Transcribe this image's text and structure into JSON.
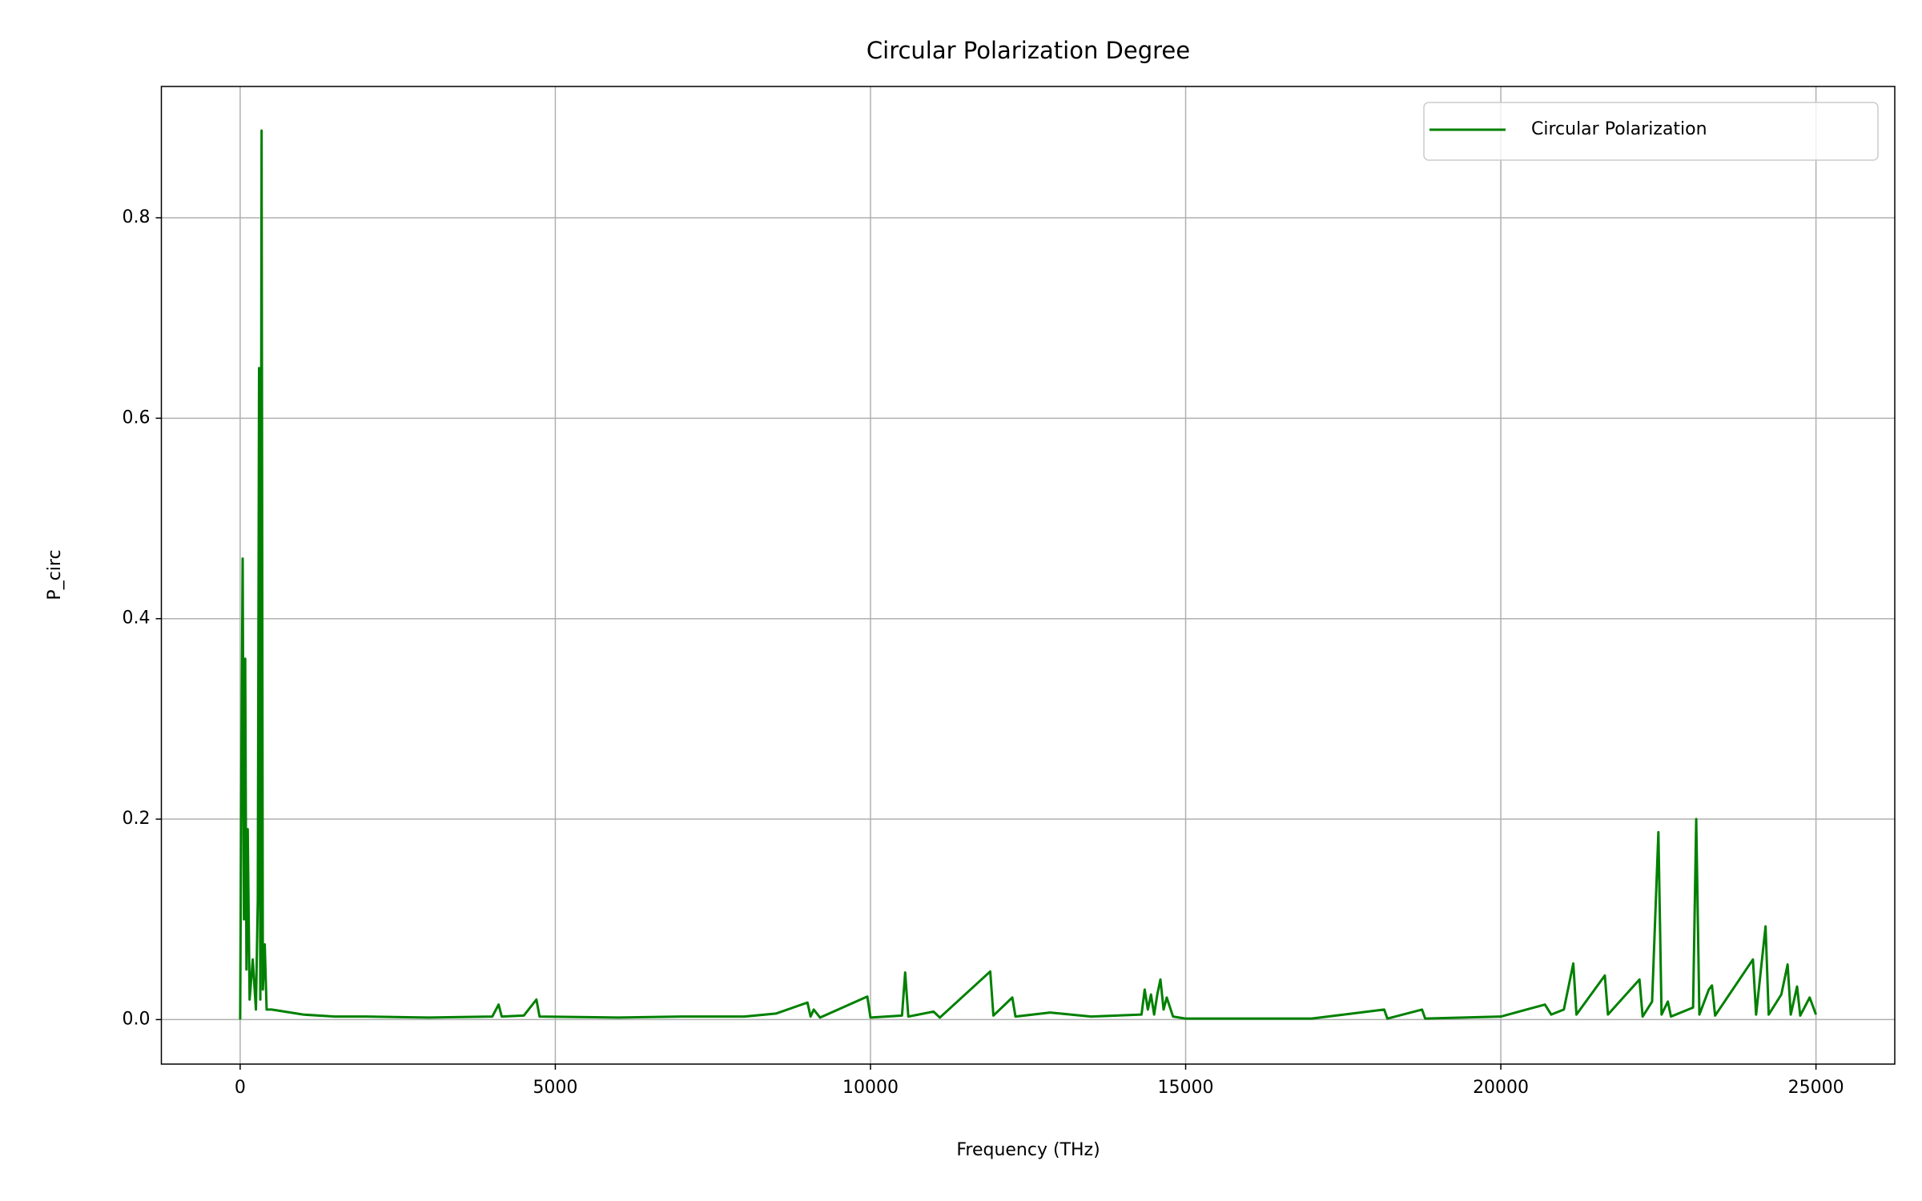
{
  "chart_data": {
    "type": "line",
    "title": "Circular Polarization Degree",
    "x_label": "Frequency (THz)",
    "y_label": "P_circ",
    "x": [
      0,
      20,
      40,
      60,
      80,
      100,
      120,
      150,
      200,
      250,
      280,
      300,
      320,
      340,
      360,
      390,
      420,
      500,
      700,
      1000,
      1500,
      2000,
      3000,
      4000,
      4100,
      4150,
      4500,
      4700,
      4750,
      6000,
      7000,
      8000,
      8500,
      9000,
      9050,
      9100,
      9200,
      9950,
      10000,
      10500,
      10550,
      10600,
      11000,
      11100,
      11900,
      11950,
      12250,
      12300,
      12850,
      13500,
      14300,
      14350,
      14400,
      14450,
      14500,
      14550,
      14600,
      14650,
      14700,
      14800,
      15000,
      16000,
      17000,
      18150,
      18200,
      18750,
      18800,
      20000,
      20700,
      20800,
      21000,
      21150,
      21200,
      21650,
      21700,
      22200,
      22250,
      22400,
      22500,
      22550,
      22650,
      22700,
      23050,
      23100,
      23150,
      23300,
      23350,
      23400,
      24000,
      24050,
      24200,
      24250,
      24450,
      24550,
      24600,
      24700,
      24750,
      24900,
      25000
    ],
    "series": [
      {
        "name": "Circular Polarization",
        "color": "#008000",
        "values": [
          0,
          0.26,
          0.46,
          0.1,
          0.36,
          0.05,
          0.19,
          0.02,
          0.06,
          0.01,
          0.12,
          0.65,
          0.02,
          0.887,
          0.03,
          0.075,
          0.01,
          0.01,
          0.008,
          0.005,
          0.003,
          0.003,
          0.002,
          0.003,
          0.015,
          0.003,
          0.004,
          0.02,
          0.003,
          0.002,
          0.003,
          0.003,
          0.006,
          0.017,
          0.003,
          0.01,
          0.002,
          0.023,
          0.002,
          0.004,
          0.047,
          0.003,
          0.008,
          0.002,
          0.048,
          0.004,
          0.022,
          0.003,
          0.007,
          0.003,
          0.005,
          0.03,
          0.01,
          0.025,
          0.005,
          0.025,
          0.04,
          0.01,
          0.022,
          0.003,
          0.001,
          0.001,
          0.001,
          0.01,
          0.001,
          0.01,
          0.001,
          0.003,
          0.015,
          0.005,
          0.01,
          0.056,
          0.005,
          0.044,
          0.005,
          0.04,
          0.003,
          0.018,
          0.187,
          0.005,
          0.018,
          0.003,
          0.012,
          0.2,
          0.005,
          0.03,
          0.034,
          0.004,
          0.06,
          0.005,
          0.093,
          0.005,
          0.025,
          0.055,
          0.005,
          0.033,
          0.004,
          0.022,
          0.005
        ]
      }
    ],
    "xlim": [
      -1250,
      26250
    ],
    "xticks": [
      0,
      5000,
      10000,
      15000,
      20000,
      25000
    ],
    "ylim": [
      -0.0444,
      0.931
    ],
    "yticks": [
      {
        "value": 0,
        "label": "0.0"
      },
      0.2,
      0.4,
      0.6,
      0.8
    ],
    "grid": true,
    "legend": "upper right"
  }
}
